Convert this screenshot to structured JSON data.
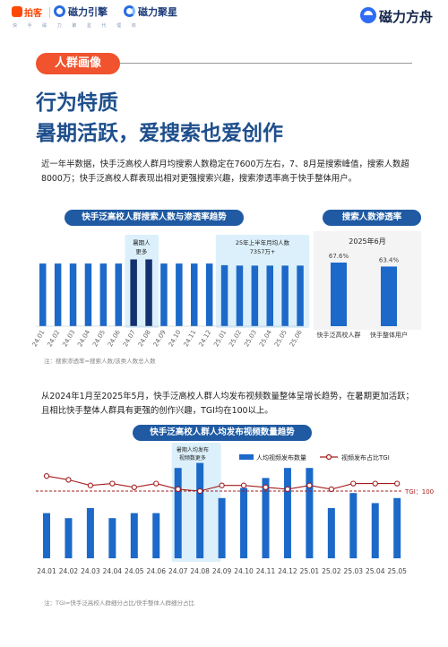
{
  "header": {
    "kuaishou_logo": "快手",
    "kuaishou_text": "拍客",
    "cili_engine": "磁力引擎",
    "cili_juxing": "磁力聚星",
    "sub_slogan": "快 手 磁 力 聚 星 代 理 商",
    "brand": "磁力方舟"
  },
  "section_tag": "人群画像",
  "headline_1": "行为特质",
  "headline_2": "暑期活跃，爱搜索也爱创作",
  "paragraph_1": "近一年半数据，快手泛高校人群月均搜索人数稳定在7600万左右，7、8月是搜索峰值，搜索人数超8000万；快手泛高校人群表现出相对更强搜索兴趣，搜索渗透率高于快手整体用户。",
  "paragraph_2": "从2024年1月至2025年5月，快手泛高校人群人均发布视频数量整体呈增长趋势，在暑期更加活跃；且相比快手整体人群具有更强的创作兴趣，TGI均在100以上。",
  "chart_titles": {
    "c1": "快手泛高校人群搜索人数与渗透率趋势",
    "c2": "搜索人数渗透率",
    "c3": "快手泛高校人群人均发布视频数量趋势"
  },
  "notes": {
    "n1": "注：搜索渗透率=搜索人数/该类人数总人数",
    "n2": "注：TGI=快手泛高校人群细分占比/快手整体人群细分占比"
  },
  "colors": {
    "bar": "#1c69c9",
    "bar_dark": "#14306e",
    "highlight": "#dcf0fb",
    "tgi_line": "#a41d1d",
    "accent": "#f0532d",
    "title_blue": "#1e4f8c"
  },
  "chart_data": [
    {
      "type": "bar",
      "categories": [
        "24.01",
        "24.02",
        "24.03",
        "24.04",
        "24.05",
        "24.06",
        "24.07",
        "24.08",
        "24.09",
        "24.10",
        "24.11",
        "24.12",
        "25.01",
        "25.02",
        "25.03",
        "25.04",
        "25.05",
        "25.06"
      ],
      "values": [
        7600,
        7600,
        7600,
        7600,
        7600,
        7600,
        8100,
        8100,
        7600,
        7600,
        7600,
        7600,
        7400,
        7350,
        7350,
        7350,
        7350,
        7350
      ],
      "annotations": [
        "暑期人更多",
        "25年上半年月均人数\n7357万+"
      ],
      "annotation_1_line1": "暑期人",
      "annotation_1_line2": "更多",
      "annotation_2_line1": "25年上半年月均人数",
      "annotation_2_line2": "7357万+"
    },
    {
      "type": "bar",
      "title": "2025年6月",
      "categories": [
        "快手泛高校人群",
        "快手整体用户"
      ],
      "values": [
        67.6,
        63.4
      ],
      "labels": [
        "67.6%",
        "63.4%"
      ]
    },
    {
      "type": "bar",
      "categories": [
        "24.01",
        "24.02",
        "24.03",
        "24.04",
        "24.05",
        "24.06",
        "24.07",
        "24.08",
        "24.09",
        "24.10",
        "24.11",
        "24.12",
        "25.01",
        "25.02",
        "25.03",
        "25.04",
        "25.05"
      ],
      "series": [
        {
          "name": "人均视频发布数量",
          "values": [
            0.9,
            0.8,
            1.0,
            0.8,
            0.9,
            0.9,
            1.8,
            1.9,
            1.2,
            1.4,
            1.6,
            1.8,
            1.8,
            1.0,
            1.3,
            1.1,
            1.2
          ]
        },
        {
          "name": "视频发布占比TGI",
          "values": [
            108,
            106,
            103,
            104,
            102,
            104,
            101,
            100,
            103,
            103,
            102,
            101,
            103,
            101,
            104,
            104,
            104
          ]
        }
      ],
      "tgi_baseline": 100,
      "tgi_label": "TGI：100",
      "annotation_line1": "暑期人均发布",
      "annotation_line2": "视频数更多"
    }
  ]
}
